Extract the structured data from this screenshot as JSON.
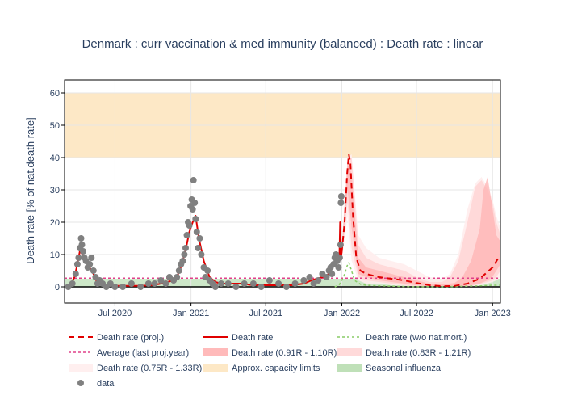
{
  "chart_data": {
    "type": "line",
    "title": "Denmark : curr vaccination & med immunity (balanced) : Death rate : linear",
    "ylabel": "Death rate [% of nat.death rate]",
    "xlabel": "",
    "x_range": [
      "2020-03-01",
      "2023-01-20"
    ],
    "ylim": [
      -5,
      64
    ],
    "y_ticks": [
      0,
      10,
      20,
      30,
      40,
      50,
      60
    ],
    "x_ticks": [
      {
        "date": "2020-07-01",
        "label": "Jul 2020"
      },
      {
        "date": "2021-01-01",
        "label": "Jan 2021"
      },
      {
        "date": "2021-07-01",
        "label": "Jul 2021"
      },
      {
        "date": "2022-01-01",
        "label": "Jan 2022"
      },
      {
        "date": "2022-07-01",
        "label": "Jul 2022"
      },
      {
        "date": "2023-01-01",
        "label": "Jan 2023"
      }
    ],
    "grid": true,
    "legend_position": "bottom",
    "colors": {
      "proj": "#e00000",
      "death": "#e00000",
      "wo_nat": "#88cc66",
      "average": "#e0408a",
      "band1": "#ffb3b3",
      "band2": "#ffd6d6",
      "band3": "#ffeded",
      "capacity": "#fde6c0",
      "influenza": "#b8ddb0",
      "data": "#808080"
    },
    "capacity_band": [
      40,
      60
    ],
    "influenza_band": [
      0,
      2.5
    ],
    "average_value": 2.7,
    "series": [
      {
        "name": "Death rate",
        "key": "death",
        "x": [
          "2020-03-05",
          "2020-03-15",
          "2020-03-25",
          "2020-04-01",
          "2020-04-07",
          "2020-04-14",
          "2020-04-21",
          "2020-05-01",
          "2020-05-10",
          "2020-05-20",
          "2020-06-01",
          "2020-06-15",
          "2020-07-01",
          "2020-08-01",
          "2020-09-01",
          "2020-10-01",
          "2020-10-20",
          "2020-11-05",
          "2020-11-20",
          "2020-12-01",
          "2020-12-10",
          "2020-12-20",
          "2020-12-28",
          "2021-01-05",
          "2021-01-12",
          "2021-01-20",
          "2021-02-01",
          "2021-02-15",
          "2021-03-01",
          "2021-03-15",
          "2021-04-01",
          "2021-05-01",
          "2021-06-01",
          "2021-07-01",
          "2021-08-01",
          "2021-09-01",
          "2021-10-01",
          "2021-10-20",
          "2021-11-01",
          "2021-11-15",
          "2021-12-01",
          "2021-12-10",
          "2021-12-20",
          "2021-12-26",
          "2021-12-28",
          "2021-12-30",
          "2022-01-01"
        ],
        "y": [
          0,
          0.5,
          3,
          7,
          11,
          10,
          8,
          6,
          4,
          1,
          1,
          0.5,
          0.3,
          0.3,
          0.3,
          0.5,
          1,
          1.5,
          2,
          4,
          7,
          12,
          17,
          20,
          22,
          15,
          8,
          3,
          1.5,
          1,
          1,
          1,
          0.5,
          0.5,
          0.5,
          0.5,
          1,
          2,
          2.5,
          3,
          4,
          6,
          8,
          8,
          20,
          9,
          11
        ]
      },
      {
        "name": "Death rate (proj.)",
        "key": "proj",
        "x": [
          "2022-01-01",
          "2022-01-08",
          "2022-01-14",
          "2022-01-18",
          "2022-01-22",
          "2022-01-28",
          "2022-02-05",
          "2022-02-15",
          "2022-03-01",
          "2022-04-01",
          "2022-05-01",
          "2022-06-01",
          "2022-07-01",
          "2022-08-01",
          "2022-09-01",
          "2022-10-01",
          "2022-11-01",
          "2022-12-01",
          "2023-01-01",
          "2023-01-20"
        ],
        "y": [
          11,
          20,
          35,
          41,
          38,
          22,
          9,
          5,
          4,
          3,
          2.5,
          2,
          1.2,
          0.5,
          0.2,
          0.3,
          1,
          2.5,
          6,
          10
        ]
      },
      {
        "name": "Death rate (w/o nat.mort.)",
        "key": "wo_nat",
        "x": [
          "2021-12-15",
          "2021-12-25",
          "2022-01-01",
          "2022-01-08",
          "2022-01-14",
          "2022-01-18",
          "2022-01-22",
          "2022-02-01",
          "2022-02-15",
          "2022-03-01",
          "2022-04-01",
          "2022-05-01",
          "2022-06-01",
          "2022-07-01",
          "2022-08-01",
          "2022-09-01",
          "2022-10-01",
          "2022-11-01",
          "2022-12-01",
          "2023-01-01",
          "2023-01-20"
        ],
        "y": [
          0,
          0.5,
          2,
          4,
          6.5,
          7.5,
          6,
          2,
          0.8,
          0.5,
          0.3,
          0.2,
          0.1,
          0.05,
          0.05,
          0.05,
          0.1,
          0.2,
          0.3,
          0.5,
          0.5
        ]
      },
      {
        "name": "Average (last proj.year)",
        "key": "average"
      },
      {
        "name": "Death rate (0.91R - 1.10R)",
        "key": "band1",
        "x": [
          "2022-01-01",
          "2022-01-15",
          "2022-01-25",
          "2022-02-10",
          "2022-03-01",
          "2022-04-01",
          "2022-05-01",
          "2022-06-01",
          "2022-07-01",
          "2022-08-01",
          "2022-09-01",
          "2022-10-01",
          "2022-10-20",
          "2022-11-10",
          "2022-12-01",
          "2022-12-10",
          "2022-12-20",
          "2022-12-31",
          "2023-01-10",
          "2023-01-20"
        ],
        "upper": [
          12,
          38,
          35,
          9,
          6,
          5,
          4,
          3,
          2,
          1,
          0.8,
          1.2,
          3,
          8,
          18,
          30,
          34,
          25,
          16,
          14
        ],
        "lower": [
          10,
          30,
          18,
          4,
          3,
          2,
          1.5,
          1,
          0.5,
          0.2,
          0.1,
          0.1,
          0.2,
          0.5,
          1,
          1.5,
          2,
          3,
          5,
          7
        ]
      },
      {
        "name": "Death rate (0.83R - 1.21R)",
        "key": "band2",
        "x": [
          "2022-01-01",
          "2022-01-15",
          "2022-01-25",
          "2022-02-10",
          "2022-03-01",
          "2022-04-01",
          "2022-05-01",
          "2022-06-01",
          "2022-07-01",
          "2022-08-01",
          "2022-09-01",
          "2022-09-20",
          "2022-10-10",
          "2022-11-01",
          "2022-11-20",
          "2022-12-05",
          "2022-12-20",
          "2023-01-01",
          "2023-01-10",
          "2023-01-20"
        ],
        "upper": [
          13,
          39,
          40,
          13,
          9,
          7,
          6,
          5,
          3,
          1.5,
          1.5,
          3,
          8,
          20,
          31,
          33,
          30,
          26,
          20,
          16
        ],
        "lower": [
          9,
          26,
          12,
          3,
          2,
          1.5,
          1,
          0.5,
          0.2,
          0.1,
          0.05,
          0.05,
          0.1,
          0.2,
          0.5,
          1,
          1.5,
          2,
          3,
          5
        ]
      },
      {
        "name": "Death rate (0.75R - 1.33R)",
        "key": "band3",
        "x": [
          "2022-01-01",
          "2022-01-15",
          "2022-01-25",
          "2022-02-10",
          "2022-03-01",
          "2022-04-01",
          "2022-05-01",
          "2022-06-01",
          "2022-07-01",
          "2022-08-01",
          "2022-09-01",
          "2022-09-20",
          "2022-10-10",
          "2022-11-01",
          "2022-11-20",
          "2022-12-05",
          "2022-12-20",
          "2023-01-01",
          "2023-01-10",
          "2023-01-20"
        ],
        "upper": [
          14,
          40,
          41,
          16,
          12,
          9,
          8,
          7,
          5,
          3,
          2.5,
          4,
          10,
          24,
          32,
          34,
          31,
          27,
          22,
          18
        ],
        "lower": [
          8,
          22,
          8,
          2,
          1,
          1,
          0.5,
          0.3,
          0.1,
          0.05,
          0.02,
          0.02,
          0.05,
          0.1,
          0.3,
          0.5,
          1,
          1.5,
          2,
          3
        ]
      },
      {
        "name": "Approx. capacity limits",
        "key": "capacity"
      },
      {
        "name": "Seasonal influenza",
        "key": "influenza"
      },
      {
        "name": "data",
        "key": "data",
        "x": [
          "2020-03-10",
          "2020-03-20",
          "2020-03-28",
          "2020-04-01",
          "2020-04-04",
          "2020-04-07",
          "2020-04-10",
          "2020-04-12",
          "2020-04-15",
          "2020-04-18",
          "2020-04-22",
          "2020-04-26",
          "2020-05-01",
          "2020-05-05",
          "2020-05-10",
          "2020-05-15",
          "2020-05-20",
          "2020-05-25",
          "2020-06-01",
          "2020-06-10",
          "2020-06-20",
          "2020-07-01",
          "2020-07-20",
          "2020-08-10",
          "2020-09-01",
          "2020-09-20",
          "2020-10-05",
          "2020-10-20",
          "2020-11-01",
          "2020-11-10",
          "2020-11-20",
          "2020-11-28",
          "2020-12-03",
          "2020-12-08",
          "2020-12-12",
          "2020-12-16",
          "2020-12-19",
          "2020-12-22",
          "2020-12-25",
          "2020-12-28",
          "2020-12-31",
          "2021-01-03",
          "2021-01-05",
          "2021-01-07",
          "2021-01-10",
          "2021-01-12",
          "2021-01-15",
          "2021-01-18",
          "2021-01-22",
          "2021-01-26",
          "2021-02-01",
          "2021-02-05",
          "2021-02-10",
          "2021-02-15",
          "2021-02-22",
          "2021-03-01",
          "2021-03-15",
          "2021-04-01",
          "2021-04-20",
          "2021-05-10",
          "2021-06-01",
          "2021-06-20",
          "2021-07-10",
          "2021-08-01",
          "2021-08-20",
          "2021-09-10",
          "2021-10-01",
          "2021-10-15",
          "2021-10-25",
          "2021-11-05",
          "2021-11-15",
          "2021-11-25",
          "2021-12-01",
          "2021-12-05",
          "2021-12-08",
          "2021-12-12",
          "2021-12-15",
          "2021-12-18",
          "2021-12-21",
          "2021-12-24",
          "2021-12-27",
          "2021-12-29",
          "2021-12-30",
          "2021-12-31"
        ],
        "y": [
          0,
          1,
          4,
          7,
          9,
          12,
          15,
          13,
          11,
          9,
          8,
          6,
          7,
          9,
          5,
          3,
          1,
          2,
          1,
          0,
          1,
          0,
          0,
          1,
          0,
          1,
          1,
          2,
          1,
          3,
          2,
          3,
          5,
          7,
          8,
          10,
          12,
          16,
          20,
          19,
          25,
          27,
          24,
          33,
          26,
          21,
          17,
          12,
          15,
          10,
          6,
          3,
          5,
          2,
          1,
          0,
          1,
          1,
          0,
          1,
          1,
          0,
          2,
          1,
          0,
          1,
          2,
          3,
          1,
          2,
          4,
          3,
          5,
          6,
          4,
          7,
          9,
          10,
          8,
          6,
          9,
          13,
          26,
          28
        ]
      }
    ]
  }
}
